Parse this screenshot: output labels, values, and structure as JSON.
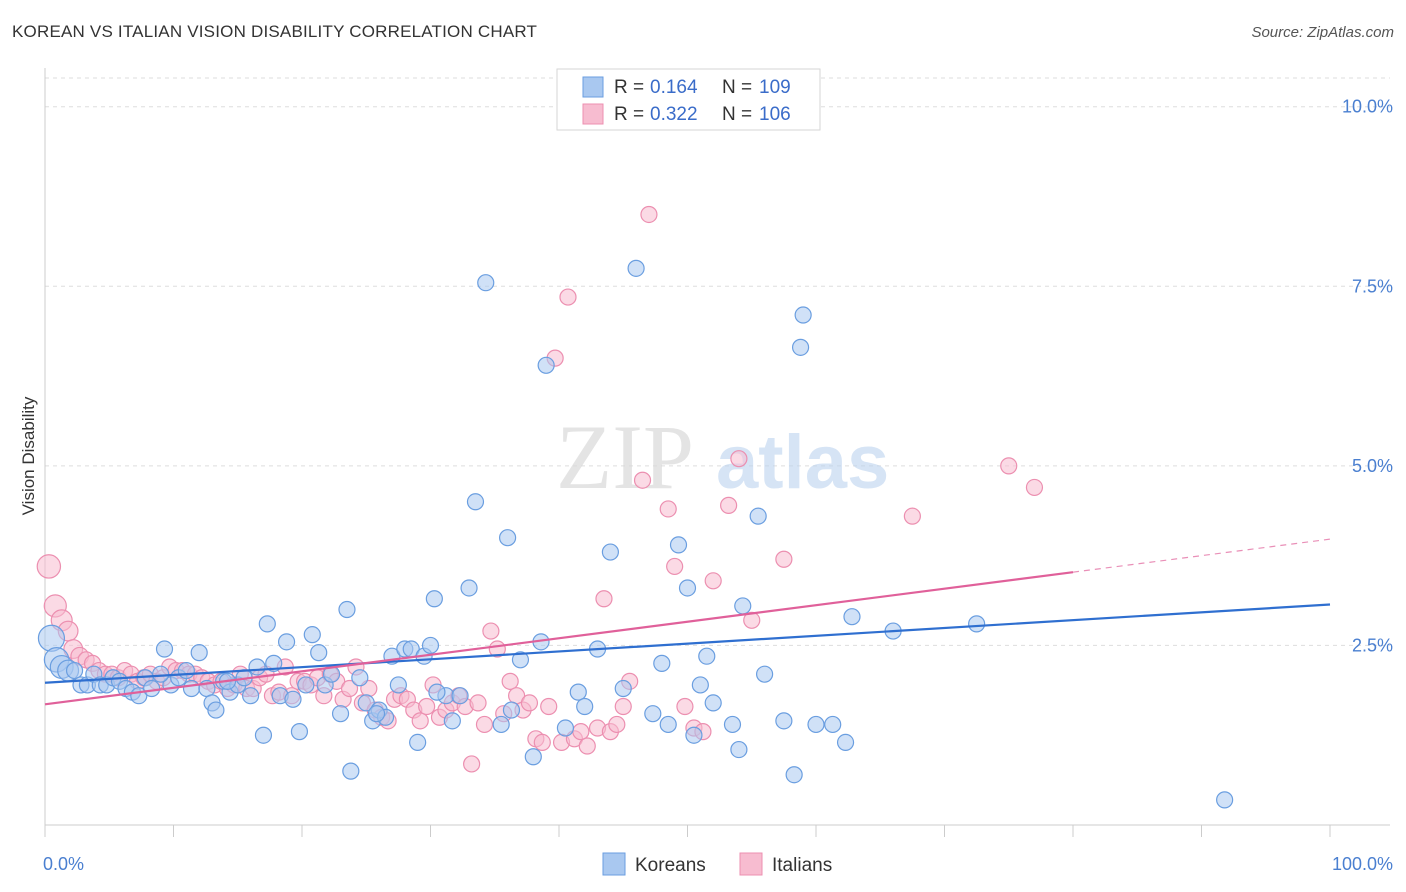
{
  "header": {
    "title": "KOREAN VS ITALIAN VISION DISABILITY CORRELATION CHART",
    "source": "Source: ZipAtlas.com"
  },
  "watermark": {
    "zip": "ZIP",
    "atlas": "atlas"
  },
  "legend_top": [
    {
      "r_label": "R =",
      "r_value": "0.164",
      "n_label": "N =",
      "n_value": "109"
    },
    {
      "r_label": "R =",
      "r_value": "0.322",
      "n_label": "N =",
      "n_value": "106"
    }
  ],
  "legend_bottom": [
    "Koreans",
    "Italians"
  ],
  "colors": {
    "korean_fill": "#a9c8f0",
    "korean_stroke": "#6a9ee0",
    "korean_line": "#2f6fd0",
    "italian_fill": "#f7bcd0",
    "italian_stroke": "#ec8fb0",
    "italian_line": "#e0609a",
    "tick_text": "#4a7fd0"
  },
  "chart_data": {
    "type": "scatter",
    "title": "KOREAN VS ITALIAN VISION DISABILITY CORRELATION CHART",
    "xlabel": "",
    "ylabel": "Vision Disability",
    "xlim": [
      0,
      100
    ],
    "ylim": [
      0,
      10.4
    ],
    "x_tick_labels": [
      "0.0%",
      "100.0%"
    ],
    "y_ticks": [
      2.5,
      5.0,
      7.5,
      10.0
    ],
    "y_tick_labels": [
      "2.5%",
      "5.0%",
      "7.5%",
      "10.0%"
    ],
    "grid": true,
    "series": [
      {
        "name": "Koreans",
        "r": 0.164,
        "n": 109,
        "trend": {
          "x": [
            0,
            100
          ],
          "y": [
            1.98,
            3.07
          ]
        },
        "points": [
          [
            0.5,
            2.6
          ],
          [
            0.9,
            2.3
          ],
          [
            1.3,
            2.2
          ],
          [
            1.8,
            2.15
          ],
          [
            2.3,
            2.15
          ],
          [
            2.8,
            1.95
          ],
          [
            3.3,
            1.95
          ],
          [
            3.8,
            2.1
          ],
          [
            4.3,
            1.95
          ],
          [
            4.8,
            1.95
          ],
          [
            5.3,
            2.05
          ],
          [
            5.8,
            2.0
          ],
          [
            6.3,
            1.9
          ],
          [
            6.8,
            1.85
          ],
          [
            7.3,
            1.8
          ],
          [
            7.8,
            2.05
          ],
          [
            8.3,
            1.9
          ],
          [
            9.3,
            2.45
          ],
          [
            9.8,
            1.95
          ],
          [
            10.4,
            2.05
          ],
          [
            11.0,
            2.15
          ],
          [
            11.4,
            1.9
          ],
          [
            12.0,
            2.4
          ],
          [
            12.6,
            1.9
          ],
          [
            13.0,
            1.7
          ],
          [
            13.3,
            1.6
          ],
          [
            13.9,
            2.0
          ],
          [
            14.4,
            1.85
          ],
          [
            15.0,
            1.95
          ],
          [
            15.5,
            2.05
          ],
          [
            16.0,
            1.8
          ],
          [
            16.5,
            2.2
          ],
          [
            17.0,
            1.25
          ],
          [
            17.3,
            2.8
          ],
          [
            17.8,
            2.25
          ],
          [
            18.3,
            1.8
          ],
          [
            18.8,
            2.55
          ],
          [
            19.3,
            1.75
          ],
          [
            19.8,
            1.3
          ],
          [
            20.3,
            1.95
          ],
          [
            20.8,
            2.65
          ],
          [
            21.3,
            2.4
          ],
          [
            21.8,
            1.95
          ],
          [
            22.3,
            2.1
          ],
          [
            23.0,
            1.55
          ],
          [
            23.5,
            3.0
          ],
          [
            23.8,
            0.75
          ],
          [
            24.5,
            2.05
          ],
          [
            25.0,
            1.7
          ],
          [
            25.5,
            1.45
          ],
          [
            26.0,
            1.6
          ],
          [
            26.5,
            1.5
          ],
          [
            27.0,
            2.35
          ],
          [
            27.5,
            1.95
          ],
          [
            28.0,
            2.45
          ],
          [
            28.5,
            2.45
          ],
          [
            29.0,
            1.15
          ],
          [
            29.5,
            2.35
          ],
          [
            30.0,
            2.5
          ],
          [
            30.3,
            3.15
          ],
          [
            31.2,
            1.8
          ],
          [
            31.7,
            1.45
          ],
          [
            32.3,
            1.8
          ],
          [
            33.0,
            3.3
          ],
          [
            33.5,
            4.5
          ],
          [
            34.3,
            7.55
          ],
          [
            35.5,
            1.4
          ],
          [
            36.0,
            4.0
          ],
          [
            36.3,
            1.6
          ],
          [
            37.0,
            2.3
          ],
          [
            38.0,
            0.95
          ],
          [
            38.6,
            2.55
          ],
          [
            39.0,
            6.4
          ],
          [
            40.5,
            1.35
          ],
          [
            41.5,
            1.85
          ],
          [
            42.0,
            1.65
          ],
          [
            43.0,
            2.45
          ],
          [
            44.0,
            3.8
          ],
          [
            45.0,
            1.9
          ],
          [
            46.0,
            7.75
          ],
          [
            47.3,
            1.55
          ],
          [
            48.0,
            2.25
          ],
          [
            48.5,
            1.4
          ],
          [
            49.3,
            3.9
          ],
          [
            50.0,
            3.3
          ],
          [
            50.5,
            1.25
          ],
          [
            51.0,
            1.95
          ],
          [
            51.5,
            2.35
          ],
          [
            52.0,
            1.7
          ],
          [
            53.5,
            1.4
          ],
          [
            54.0,
            1.05
          ],
          [
            54.3,
            3.05
          ],
          [
            55.5,
            4.3
          ],
          [
            56.0,
            2.1
          ],
          [
            57.5,
            1.45
          ],
          [
            58.3,
            0.7
          ],
          [
            58.8,
            6.65
          ],
          [
            59.0,
            7.1
          ],
          [
            60.0,
            1.4
          ],
          [
            61.3,
            1.4
          ],
          [
            62.3,
            1.15
          ],
          [
            62.8,
            2.9
          ],
          [
            66.0,
            2.7
          ],
          [
            72.5,
            2.8
          ],
          [
            91.8,
            0.35
          ],
          [
            30.5,
            1.85
          ],
          [
            25.8,
            1.55
          ],
          [
            14.2,
            2.0
          ],
          [
            9.0,
            2.1
          ]
        ]
      },
      {
        "name": "Italians",
        "r": 0.322,
        "n": 106,
        "trend": {
          "x": [
            0,
            80
          ],
          "y": [
            1.68,
            3.52
          ]
        },
        "trend_dashed": {
          "x": [
            80,
            100
          ],
          "y": [
            3.52,
            3.98
          ]
        },
        "points": [
          [
            0.3,
            3.6
          ],
          [
            0.8,
            3.05
          ],
          [
            1.3,
            2.85
          ],
          [
            1.8,
            2.7
          ],
          [
            2.2,
            2.45
          ],
          [
            2.7,
            2.35
          ],
          [
            3.2,
            2.3
          ],
          [
            3.7,
            2.25
          ],
          [
            4.2,
            2.15
          ],
          [
            4.7,
            2.1
          ],
          [
            5.2,
            2.1
          ],
          [
            5.7,
            2.05
          ],
          [
            6.2,
            2.15
          ],
          [
            6.7,
            2.1
          ],
          [
            7.2,
            2.0
          ],
          [
            7.7,
            2.05
          ],
          [
            8.2,
            2.1
          ],
          [
            8.7,
            2.0
          ],
          [
            9.2,
            2.05
          ],
          [
            9.7,
            2.2
          ],
          [
            10.2,
            2.15
          ],
          [
            10.7,
            2.15
          ],
          [
            11.2,
            2.1
          ],
          [
            11.7,
            2.1
          ],
          [
            12.2,
            2.05
          ],
          [
            12.7,
            2.0
          ],
          [
            13.2,
            1.95
          ],
          [
            13.7,
            2.0
          ],
          [
            14.2,
            1.9
          ],
          [
            14.7,
            1.95
          ],
          [
            15.2,
            2.1
          ],
          [
            15.7,
            1.9
          ],
          [
            16.2,
            1.9
          ],
          [
            16.7,
            2.05
          ],
          [
            17.2,
            2.1
          ],
          [
            17.7,
            1.8
          ],
          [
            18.2,
            1.85
          ],
          [
            18.7,
            2.2
          ],
          [
            19.2,
            1.8
          ],
          [
            19.7,
            2.0
          ],
          [
            20.2,
            2.0
          ],
          [
            20.7,
            1.95
          ],
          [
            21.2,
            2.05
          ],
          [
            21.7,
            1.8
          ],
          [
            22.2,
            2.1
          ],
          [
            22.7,
            2.0
          ],
          [
            23.2,
            1.75
          ],
          [
            23.7,
            1.9
          ],
          [
            24.2,
            2.2
          ],
          [
            24.7,
            1.7
          ],
          [
            25.2,
            1.9
          ],
          [
            25.7,
            1.6
          ],
          [
            26.2,
            1.5
          ],
          [
            26.7,
            1.45
          ],
          [
            27.2,
            1.75
          ],
          [
            27.7,
            1.8
          ],
          [
            28.2,
            1.75
          ],
          [
            28.7,
            1.6
          ],
          [
            29.2,
            1.45
          ],
          [
            29.7,
            1.65
          ],
          [
            30.2,
            1.95
          ],
          [
            30.7,
            1.5
          ],
          [
            31.2,
            1.6
          ],
          [
            31.7,
            1.7
          ],
          [
            32.2,
            1.8
          ],
          [
            32.7,
            1.65
          ],
          [
            33.2,
            0.85
          ],
          [
            33.7,
            1.7
          ],
          [
            34.2,
            1.4
          ],
          [
            34.7,
            2.7
          ],
          [
            35.2,
            2.45
          ],
          [
            35.7,
            1.55
          ],
          [
            36.2,
            2.0
          ],
          [
            36.7,
            1.8
          ],
          [
            37.2,
            1.6
          ],
          [
            37.7,
            1.7
          ],
          [
            38.2,
            1.2
          ],
          [
            38.7,
            1.15
          ],
          [
            39.2,
            1.65
          ],
          [
            39.7,
            6.5
          ],
          [
            40.2,
            1.15
          ],
          [
            40.7,
            7.35
          ],
          [
            41.2,
            1.2
          ],
          [
            41.7,
            1.3
          ],
          [
            42.2,
            1.1
          ],
          [
            43.0,
            1.35
          ],
          [
            43.5,
            3.15
          ],
          [
            44.0,
            1.3
          ],
          [
            44.5,
            1.4
          ],
          [
            45.0,
            1.65
          ],
          [
            45.5,
            2.0
          ],
          [
            46.5,
            4.8
          ],
          [
            47.0,
            8.5
          ],
          [
            48.5,
            4.4
          ],
          [
            49.0,
            3.6
          ],
          [
            49.8,
            1.65
          ],
          [
            50.5,
            1.35
          ],
          [
            51.2,
            1.3
          ],
          [
            52.0,
            3.4
          ],
          [
            53.2,
            4.45
          ],
          [
            54.0,
            5.1
          ],
          [
            55.0,
            2.85
          ],
          [
            57.5,
            3.7
          ],
          [
            67.5,
            4.3
          ],
          [
            75.0,
            5.0
          ],
          [
            77.0,
            4.7
          ]
        ]
      }
    ]
  }
}
